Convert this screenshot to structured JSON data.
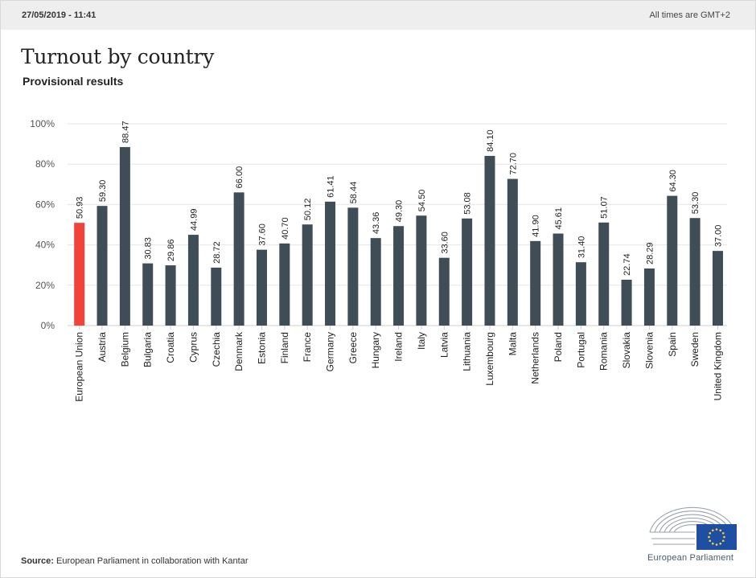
{
  "header": {
    "timestamp": "27/05/2019 - 11:41",
    "timezone_note": "All times are GMT+2"
  },
  "title": "Turnout by country",
  "subtitle": "Provisional results",
  "source": {
    "label": "Source:",
    "text": "European Parliament in collaboration with Kantar"
  },
  "logo": {
    "name": "European Parliament"
  },
  "colors": {
    "highlight_bar": "#f2423a",
    "bar": "#3f4d57",
    "grid": "#e6e6e6",
    "axis_text": "#555555"
  },
  "chart_data": {
    "type": "bar",
    "title": "Turnout by country",
    "subtitle": "Provisional results",
    "xlabel": "",
    "ylabel": "",
    "ylim": [
      0,
      100
    ],
    "y_ticks": [
      "0%",
      "20%",
      "40%",
      "60%",
      "80%",
      "100%"
    ],
    "y_tick_values": [
      0,
      20,
      40,
      60,
      80,
      100
    ],
    "grid": true,
    "highlight_category": "European Union",
    "categories": [
      "European Union",
      "Austria",
      "Belgium",
      "Bulgaria",
      "Croatia",
      "Cyprus",
      "Czechia",
      "Denmark",
      "Estonia",
      "Finland",
      "France",
      "Germany",
      "Greece",
      "Hungary",
      "Ireland",
      "Italy",
      "Latvia",
      "Lithuania",
      "Luxembourg",
      "Malta",
      "Netherlands",
      "Poland",
      "Portugal",
      "Romania",
      "Slovakia",
      "Slovenia",
      "Spain",
      "Sweden",
      "United Kingdom"
    ],
    "values": [
      50.93,
      59.3,
      88.47,
      30.83,
      29.86,
      44.99,
      28.72,
      66.0,
      37.6,
      40.7,
      50.12,
      61.41,
      58.44,
      43.36,
      49.3,
      54.5,
      33.6,
      53.08,
      84.1,
      72.7,
      41.9,
      45.61,
      31.4,
      51.07,
      22.74,
      28.29,
      64.3,
      53.3,
      37.0
    ],
    "value_labels": [
      "50.93",
      "59.30",
      "88.47",
      "30.83",
      "29.86",
      "44.99",
      "28.72",
      "66.00",
      "37.60",
      "40.70",
      "50.12",
      "61.41",
      "58.44",
      "43.36",
      "49.30",
      "54.50",
      "33.60",
      "53.08",
      "84.10",
      "72.70",
      "41.90",
      "45.61",
      "31.40",
      "51.07",
      "22.74",
      "28.29",
      "64.30",
      "53.30",
      "37.00"
    ]
  }
}
